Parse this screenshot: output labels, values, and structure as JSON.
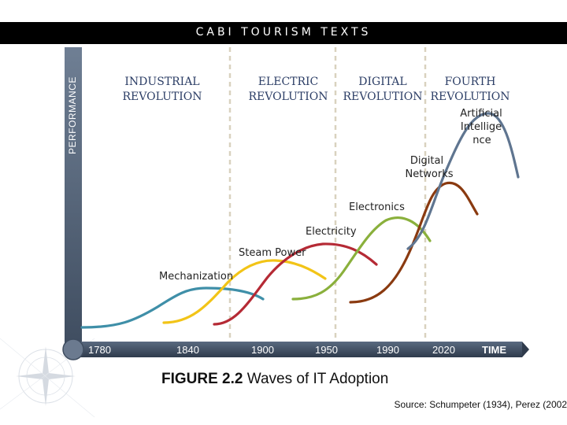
{
  "header": {
    "title": "CABI TOURISM TEXTS"
  },
  "axes": {
    "y_label": "PERFORMANCE",
    "x_label": "TIME",
    "x_ticks": [
      "1780",
      "1840",
      "1900",
      "1950",
      "1990",
      "2020"
    ]
  },
  "revolutions": [
    {
      "line1": "INDUSTRIAL",
      "line2": "REVOLUTION"
    },
    {
      "line1": "ELECTRIC",
      "line2": "REVOLUTION"
    },
    {
      "line1": "DIGITAL",
      "line2": "REVOLUTION"
    },
    {
      "line1": "FOURTH",
      "line2": "REVOLUTION"
    }
  ],
  "waves": [
    {
      "label": "Mechanization",
      "color": "#3f8fa8"
    },
    {
      "label": "Steam Power",
      "color": "#f2c417"
    },
    {
      "label": "Electricity",
      "color": "#b52a35"
    },
    {
      "label": "Electronics",
      "color": "#8ab03c"
    },
    {
      "label": "Digital Networks",
      "label_line1": "Digital",
      "label_line2": "Networks",
      "color": "#8a3a10"
    },
    {
      "label": "Artificial Intelligence",
      "label_line1": "Artificial",
      "label_line2": "Intellige",
      "label_line3": "nce",
      "color": "#5f7590"
    }
  ],
  "caption": {
    "figure": "FIGURE 2.2",
    "text": "Waves of IT Adoption"
  },
  "source": "Source: Schumpeter (1934), Perez (2002"
}
